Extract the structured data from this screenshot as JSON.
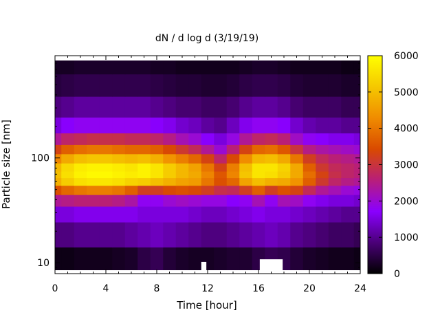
{
  "chart_data": {
    "type": "heatmap",
    "title": "dN / d log d (3/19/19)",
    "xlabel": "Time [hour]",
    "ylabel": "Particle size [nm]",
    "xlim": [
      0,
      24
    ],
    "ylim": [
      8.5,
      850
    ],
    "y_scale": "log",
    "x_ticks": [
      0,
      4,
      8,
      12,
      16,
      20,
      24
    ],
    "x_tick_labels": [
      "0",
      "4",
      "8",
      "12",
      "16",
      "20",
      "24"
    ],
    "y_ticks": [
      10,
      100
    ],
    "y_tick_labels": [
      "10",
      "100"
    ],
    "colorbar": {
      "range": [
        0,
        6000
      ],
      "ticks": [
        0,
        1000,
        2000,
        3000,
        4000,
        5000,
        6000
      ],
      "tick_labels": [
        "0",
        "1000",
        "2000",
        "3000",
        "4000",
        "5000",
        "6000"
      ],
      "palette": [
        "#000000",
        "#4b0078",
        "#8a00ff",
        "#b81e7a",
        "#d94a00",
        "#f08c00",
        "#f5c800",
        "#ffff00"
      ]
    },
    "size_bins_nm": [
      10,
      20,
      30,
      40,
      50,
      60,
      70,
      80,
      100,
      120,
      150,
      200,
      300,
      500,
      800
    ],
    "time_hours": [
      0,
      1,
      2,
      3,
      4,
      5,
      6,
      7,
      8,
      9,
      10,
      11,
      12,
      13,
      14,
      15,
      16,
      17,
      18,
      19,
      20,
      21,
      22,
      23,
      24
    ],
    "missing_data": [
      {
        "start": 11.5,
        "end": 11.9,
        "size_min": 8.5,
        "size_max": 10.2
      },
      {
        "start": 16.1,
        "end": 17.9,
        "size_min": 8.5,
        "size_max": 10.8
      }
    ],
    "values": [
      [
        150,
        150,
        200,
        200,
        200,
        250,
        300,
        500,
        600,
        400,
        300,
        250,
        250,
        300,
        350,
        350,
        500,
        600,
        550,
        400,
        300,
        250,
        200,
        200,
        150
      ],
      [
        900,
        900,
        1000,
        1000,
        1000,
        1000,
        1100,
        1200,
        1300,
        1200,
        1100,
        1000,
        900,
        900,
        1000,
        1100,
        1200,
        1300,
        1200,
        1000,
        900,
        800,
        700,
        700,
        600
      ],
      [
        1500,
        1500,
        1600,
        1600,
        1600,
        1600,
        1600,
        1500,
        1500,
        1500,
        1500,
        1400,
        1300,
        1300,
        1400,
        1500,
        1600,
        1500,
        1500,
        1400,
        1300,
        1200,
        1100,
        1000,
        1000
      ],
      [
        2400,
        2500,
        2600,
        2600,
        2600,
        2500,
        2300,
        1800,
        1800,
        2000,
        2100,
        2000,
        1900,
        1900,
        1700,
        1800,
        2200,
        1800,
        2200,
        2100,
        1800,
        1600,
        1500,
        1500,
        1400
      ],
      [
        3500,
        3800,
        4000,
        4100,
        4100,
        4000,
        3700,
        3200,
        3200,
        3400,
        3500,
        3400,
        3200,
        2900,
        2800,
        3200,
        3700,
        3200,
        3500,
        3300,
        2800,
        2400,
        2200,
        2000,
        1900
      ],
      [
        4800,
        5200,
        5500,
        5600,
        5600,
        5500,
        5300,
        5200,
        5000,
        4800,
        4600,
        4500,
        4000,
        3500,
        3800,
        4600,
        5000,
        4800,
        4700,
        4400,
        3700,
        3100,
        2700,
        2500,
        2400
      ],
      [
        5000,
        5500,
        5800,
        5900,
        5900,
        5800,
        5700,
        5800,
        5600,
        5200,
        4900,
        4700,
        4200,
        3600,
        4200,
        5100,
        5600,
        5500,
        5200,
        4700,
        3900,
        3300,
        2900,
        2700,
        2600
      ],
      [
        4900,
        5400,
        5700,
        5800,
        5800,
        5700,
        5600,
        5800,
        5600,
        5200,
        4900,
        4600,
        4000,
        3300,
        4100,
        5000,
        5600,
        5600,
        5300,
        4700,
        3700,
        3100,
        2800,
        2700,
        2600
      ],
      [
        4200,
        4700,
        5000,
        5100,
        5100,
        5000,
        4900,
        5000,
        4800,
        4400,
        4100,
        3800,
        3300,
        2700,
        3400,
        4300,
        4900,
        5000,
        4700,
        4000,
        3200,
        2800,
        2600,
        2500,
        2400
      ],
      [
        3300,
        3700,
        3900,
        4000,
        4000,
        3900,
        3800,
        3800,
        3700,
        3400,
        3100,
        2800,
        2400,
        2000,
        2600,
        3300,
        3800,
        3900,
        3600,
        3000,
        2500,
        2300,
        2200,
        2100,
        2000
      ],
      [
        2400,
        2700,
        2800,
        2900,
        2900,
        2900,
        2800,
        2800,
        2700,
        2500,
        2200,
        2000,
        1700,
        1500,
        1900,
        2400,
        2700,
        2800,
        2600,
        2100,
        1800,
        1700,
        1600,
        1600,
        1500
      ],
      [
        1500,
        1700,
        1800,
        1800,
        1800,
        1800,
        1800,
        1800,
        1700,
        1600,
        1400,
        1300,
        1100,
        1000,
        1300,
        1600,
        1800,
        1800,
        1700,
        1400,
        1200,
        1100,
        1100,
        1000,
        1000
      ],
      [
        900,
        1000,
        1100,
        1100,
        1100,
        1100,
        1100,
        1100,
        1000,
        900,
        800,
        800,
        700,
        700,
        800,
        1000,
        1100,
        1100,
        1000,
        800,
        700,
        700,
        700,
        600,
        600
      ],
      [
        450,
        500,
        550,
        550,
        550,
        550,
        550,
        550,
        500,
        450,
        400,
        400,
        350,
        350,
        400,
        500,
        550,
        550,
        500,
        400,
        350,
        350,
        350,
        300,
        300
      ],
      [
        250,
        250,
        300,
        300,
        300,
        300,
        300,
        300,
        250,
        250,
        200,
        200,
        200,
        200,
        200,
        250,
        300,
        300,
        250,
        200,
        200,
        200,
        200,
        150,
        150
      ]
    ]
  }
}
